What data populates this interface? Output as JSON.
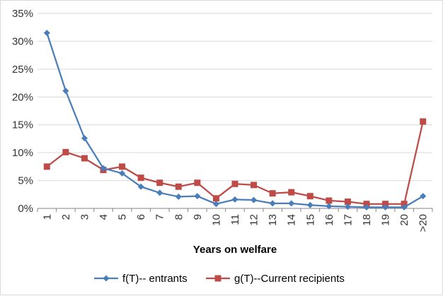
{
  "chart_data": {
    "type": "line",
    "title": "",
    "xlabel": "Years on welfare",
    "ylabel": "",
    "categories": [
      "1",
      "2",
      "3",
      "4",
      "5",
      "6",
      "7",
      "8",
      "9",
      "10",
      "11",
      "12",
      "13",
      "14",
      "15",
      "16",
      "17",
      "18",
      "19",
      "20",
      ">20"
    ],
    "y_ticks": [
      "0%",
      "5%",
      "10%",
      "15%",
      "20%",
      "25%",
      "30%",
      "35%"
    ],
    "ylim": [
      0,
      35
    ],
    "y_unit": "%",
    "grid": true,
    "legend_position": "bottom",
    "series": [
      {
        "name": "f(T)-- entrants",
        "color": "#4a7ebb",
        "marker": "diamond",
        "values": [
          31.5,
          21.1,
          12.6,
          7.2,
          6.3,
          3.9,
          2.8,
          2.1,
          2.2,
          0.8,
          1.6,
          1.5,
          0.9,
          0.9,
          0.6,
          0.4,
          0.3,
          0.2,
          0.2,
          0.2,
          2.2
        ]
      },
      {
        "name": "g(T)--Current recipients",
        "color": "#be4b48",
        "marker": "square",
        "values": [
          7.5,
          10.1,
          9.0,
          6.9,
          7.5,
          5.5,
          4.6,
          3.9,
          4.6,
          1.8,
          4.4,
          4.2,
          2.7,
          2.9,
          2.2,
          1.4,
          1.2,
          0.8,
          0.8,
          0.8,
          15.6
        ]
      }
    ]
  }
}
